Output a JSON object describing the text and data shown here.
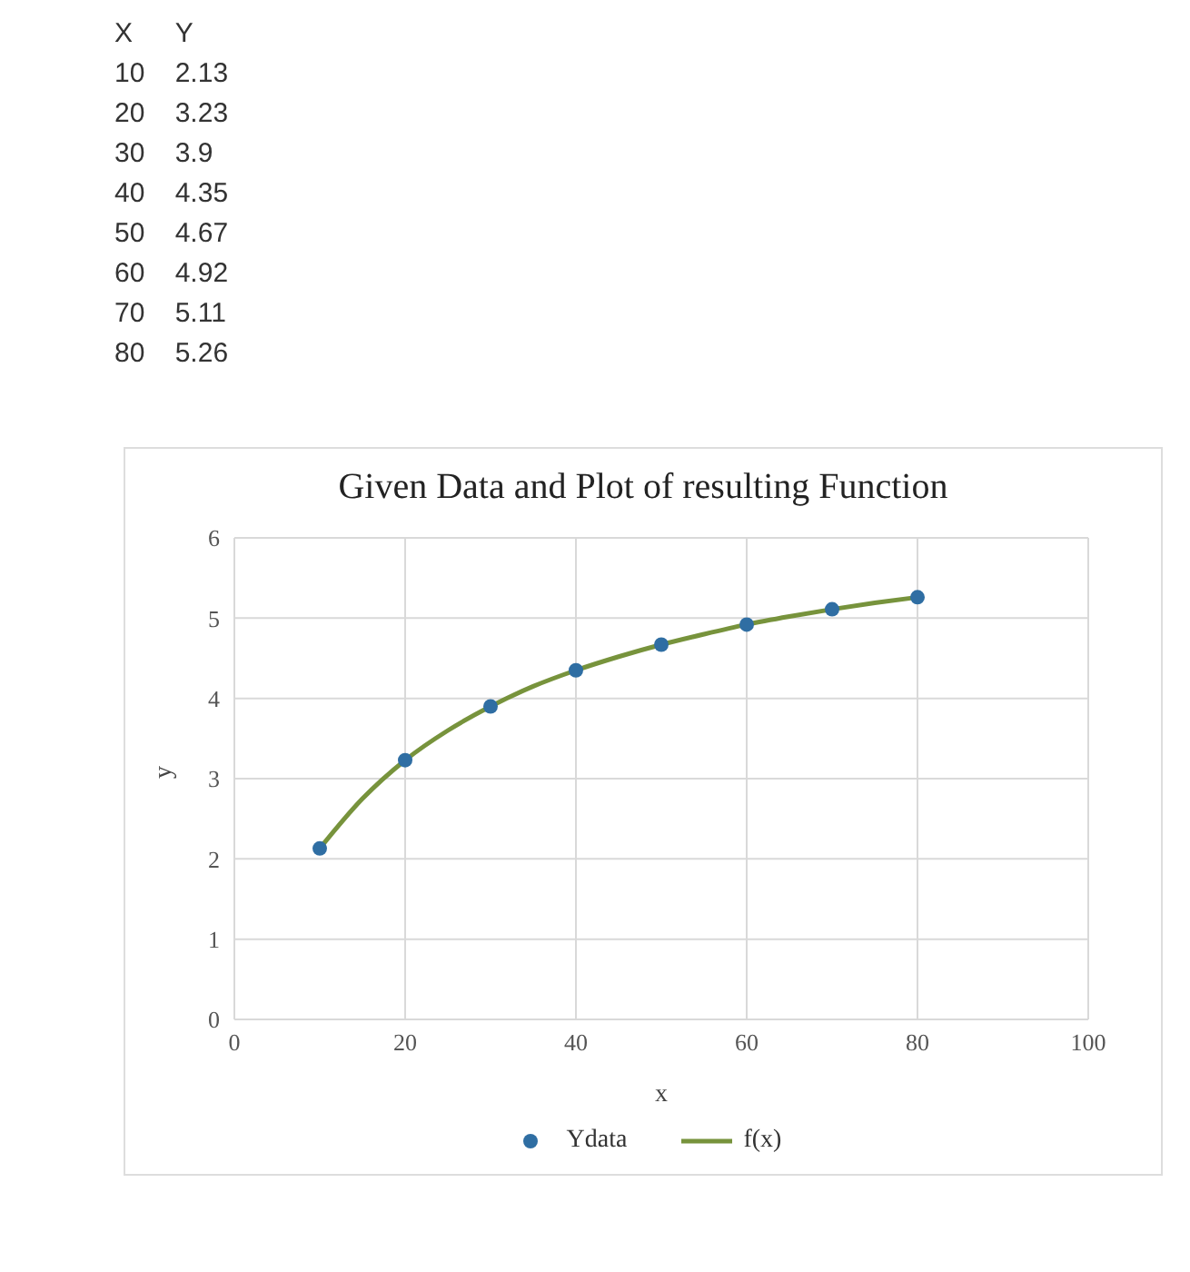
{
  "chart_data": [
    {
      "type": "other",
      "annotations": [
        "X\tY",
        "10\t2.13",
        "20\t3.23",
        "30\t3.9",
        "40\t4.35",
        "50\t4.67",
        "60\t4.92",
        "70\t5.11",
        "80\t5.26"
      ]
    },
    {
      "type": "scatter",
      "title": "Given Data and Plot of resulting Function",
      "xlabel": "x",
      "ylabel": "y",
      "xlim": [
        0,
        100
      ],
      "ylim": [
        0,
        6
      ],
      "xticks": [
        0,
        20,
        40,
        60,
        80,
        100
      ],
      "yticks": [
        0,
        1,
        2,
        3,
        4,
        5,
        6
      ],
      "grid": true,
      "legend": "bottom",
      "series": [
        {
          "name": "Ydata",
          "type": "scatter",
          "marker": "circle",
          "color": "#2f6ea3",
          "x": [
            10,
            20,
            30,
            40,
            50,
            60,
            70,
            80
          ],
          "values": [
            2.13,
            3.23,
            3.9,
            4.35,
            4.67,
            4.92,
            5.11,
            5.26
          ]
        },
        {
          "name": "f(x)",
          "type": "line",
          "marker": "none",
          "color": "#77933c",
          "x": [
            10,
            15,
            20,
            25,
            30,
            35,
            40,
            45,
            50,
            55,
            60,
            65,
            70,
            75,
            80
          ],
          "values": [
            2.13,
            2.75,
            3.23,
            3.6,
            3.9,
            4.15,
            4.35,
            4.52,
            4.67,
            4.8,
            4.92,
            5.02,
            5.11,
            5.19,
            5.26
          ]
        }
      ]
    }
  ]
}
